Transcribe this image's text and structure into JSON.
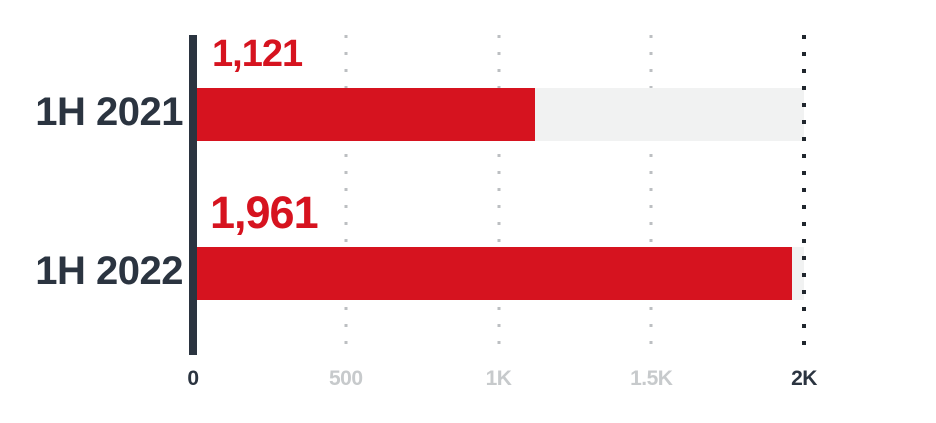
{
  "chart_data": {
    "type": "bar",
    "orientation": "horizontal",
    "title": "",
    "xlabel": "",
    "ylabel": "",
    "categories": [
      "1H 2021",
      "1H 2022"
    ],
    "values": [
      1121,
      1961
    ],
    "value_labels": [
      "1,121",
      "1,961"
    ],
    "xlim": [
      0,
      2000
    ],
    "grid": "dotted-vertical",
    "legend_position": "none",
    "bars": [
      {
        "category": "1H 2021",
        "value": 1121,
        "display": "1,121"
      },
      {
        "category": "1H 2022",
        "value": 1961,
        "display": "1,961"
      }
    ],
    "xticks": [
      {
        "value": 0,
        "label": "0",
        "emphasis": true
      },
      {
        "value": 500,
        "label": "500",
        "emphasis": false
      },
      {
        "value": 1000,
        "label": "1K",
        "emphasis": false
      },
      {
        "value": 1500,
        "label": "1.5K",
        "emphasis": false
      },
      {
        "value": 2000,
        "label": "2K",
        "emphasis": true
      }
    ],
    "colors": {
      "bar": "#d6131f",
      "track": "#f1f2f2",
      "value_label": "#d6131f",
      "category_label": "#2b3440",
      "axis_line": "#2b3440",
      "grid_light": "#bcbfc2",
      "grid_dark": "#20262d",
      "tick_muted": "#c7cacc",
      "tick_emphasis": "#2b3440"
    }
  }
}
